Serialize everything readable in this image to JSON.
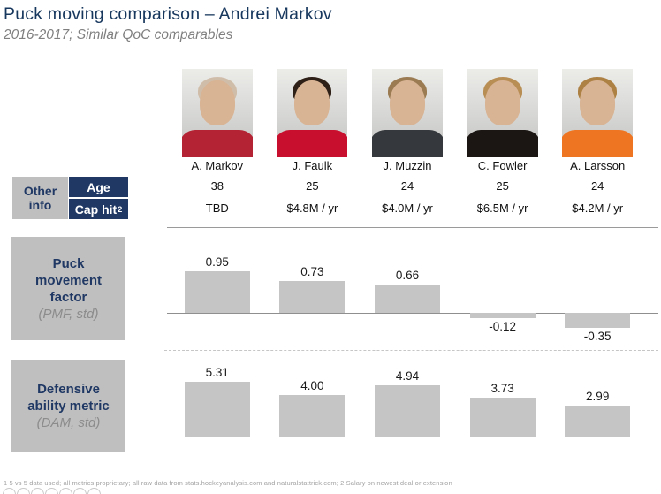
{
  "slide": {
    "title": "Puck moving comparison – Andrei Markov",
    "subtitle": "2016-2017; Similar QoC comparables",
    "footnote": "1 5 vs 5 data used; all metrics proprietary; all raw data from stats.hockeyanalysis.com and naturalstattrick.com; 2 Salary on newest deal or extension"
  },
  "other_info": {
    "label_line1": "Other",
    "label_line2": "info",
    "row1": "Age",
    "row2": "Cap hit",
    "row2_sup": "2"
  },
  "players": [
    {
      "name": "A. Markov",
      "age": "38",
      "cap_hit": "TBD",
      "jersey_color": "#b42333",
      "hair_color": "#d0bda9"
    },
    {
      "name": "J. Faulk",
      "age": "25",
      "cap_hit": "$4.8M / yr",
      "jersey_color": "#c8102e",
      "hair_color": "#2e2016"
    },
    {
      "name": "J. Muzzin",
      "age": "24",
      "cap_hit": "$4.0M / yr",
      "jersey_color": "#35383c",
      "hair_color": "#9a7b52"
    },
    {
      "name": "C. Fowler",
      "age": "25",
      "cap_hit": "$6.5M / yr",
      "jersey_color": "#1b1613",
      "hair_color": "#b98e55"
    },
    {
      "name": "A. Larsson",
      "age": "24",
      "cap_hit": "$4.2M / yr",
      "jersey_color": "#ee7623",
      "hair_color": "#ad8144"
    }
  ],
  "pmf_section": {
    "title": "Puck movement factor",
    "subtitle": "(PMF, std)"
  },
  "dam_section": {
    "title": "Defensive ability metric",
    "subtitle": "(DAM, std)"
  },
  "chart_data": [
    {
      "id": "pmf",
      "type": "bar",
      "title": "Puck movement factor (PMF, std)",
      "categories": [
        "A. Markov",
        "J. Faulk",
        "J. Muzzin",
        "C. Fowler",
        "A. Larsson"
      ],
      "values": [
        0.95,
        0.73,
        0.66,
        -0.12,
        -0.35
      ],
      "labels": [
        "0.95",
        "0.73",
        "0.66",
        "-0.12",
        "-0.35"
      ],
      "bar_color": "#c5c5c5",
      "baseline": 0,
      "grid": false,
      "legend": "none"
    },
    {
      "id": "dam",
      "type": "bar",
      "title": "Defensive ability metric (DAM, std)",
      "categories": [
        "A. Markov",
        "J. Faulk",
        "J. Muzzin",
        "C. Fowler",
        "A. Larsson"
      ],
      "values": [
        5.31,
        4.0,
        4.94,
        3.73,
        2.99
      ],
      "labels": [
        "5.31",
        "4.00",
        "4.94",
        "3.73",
        "2.99"
      ],
      "bar_color": "#c5c5c5",
      "baseline": 0,
      "grid": false,
      "legend": "none"
    }
  ],
  "colors": {
    "navy": "#1f3864",
    "title_navy": "#17375d",
    "box_gray": "#bfbfbf",
    "bar_gray": "#c5c5c5",
    "axis_line": "#8f8f8f"
  }
}
